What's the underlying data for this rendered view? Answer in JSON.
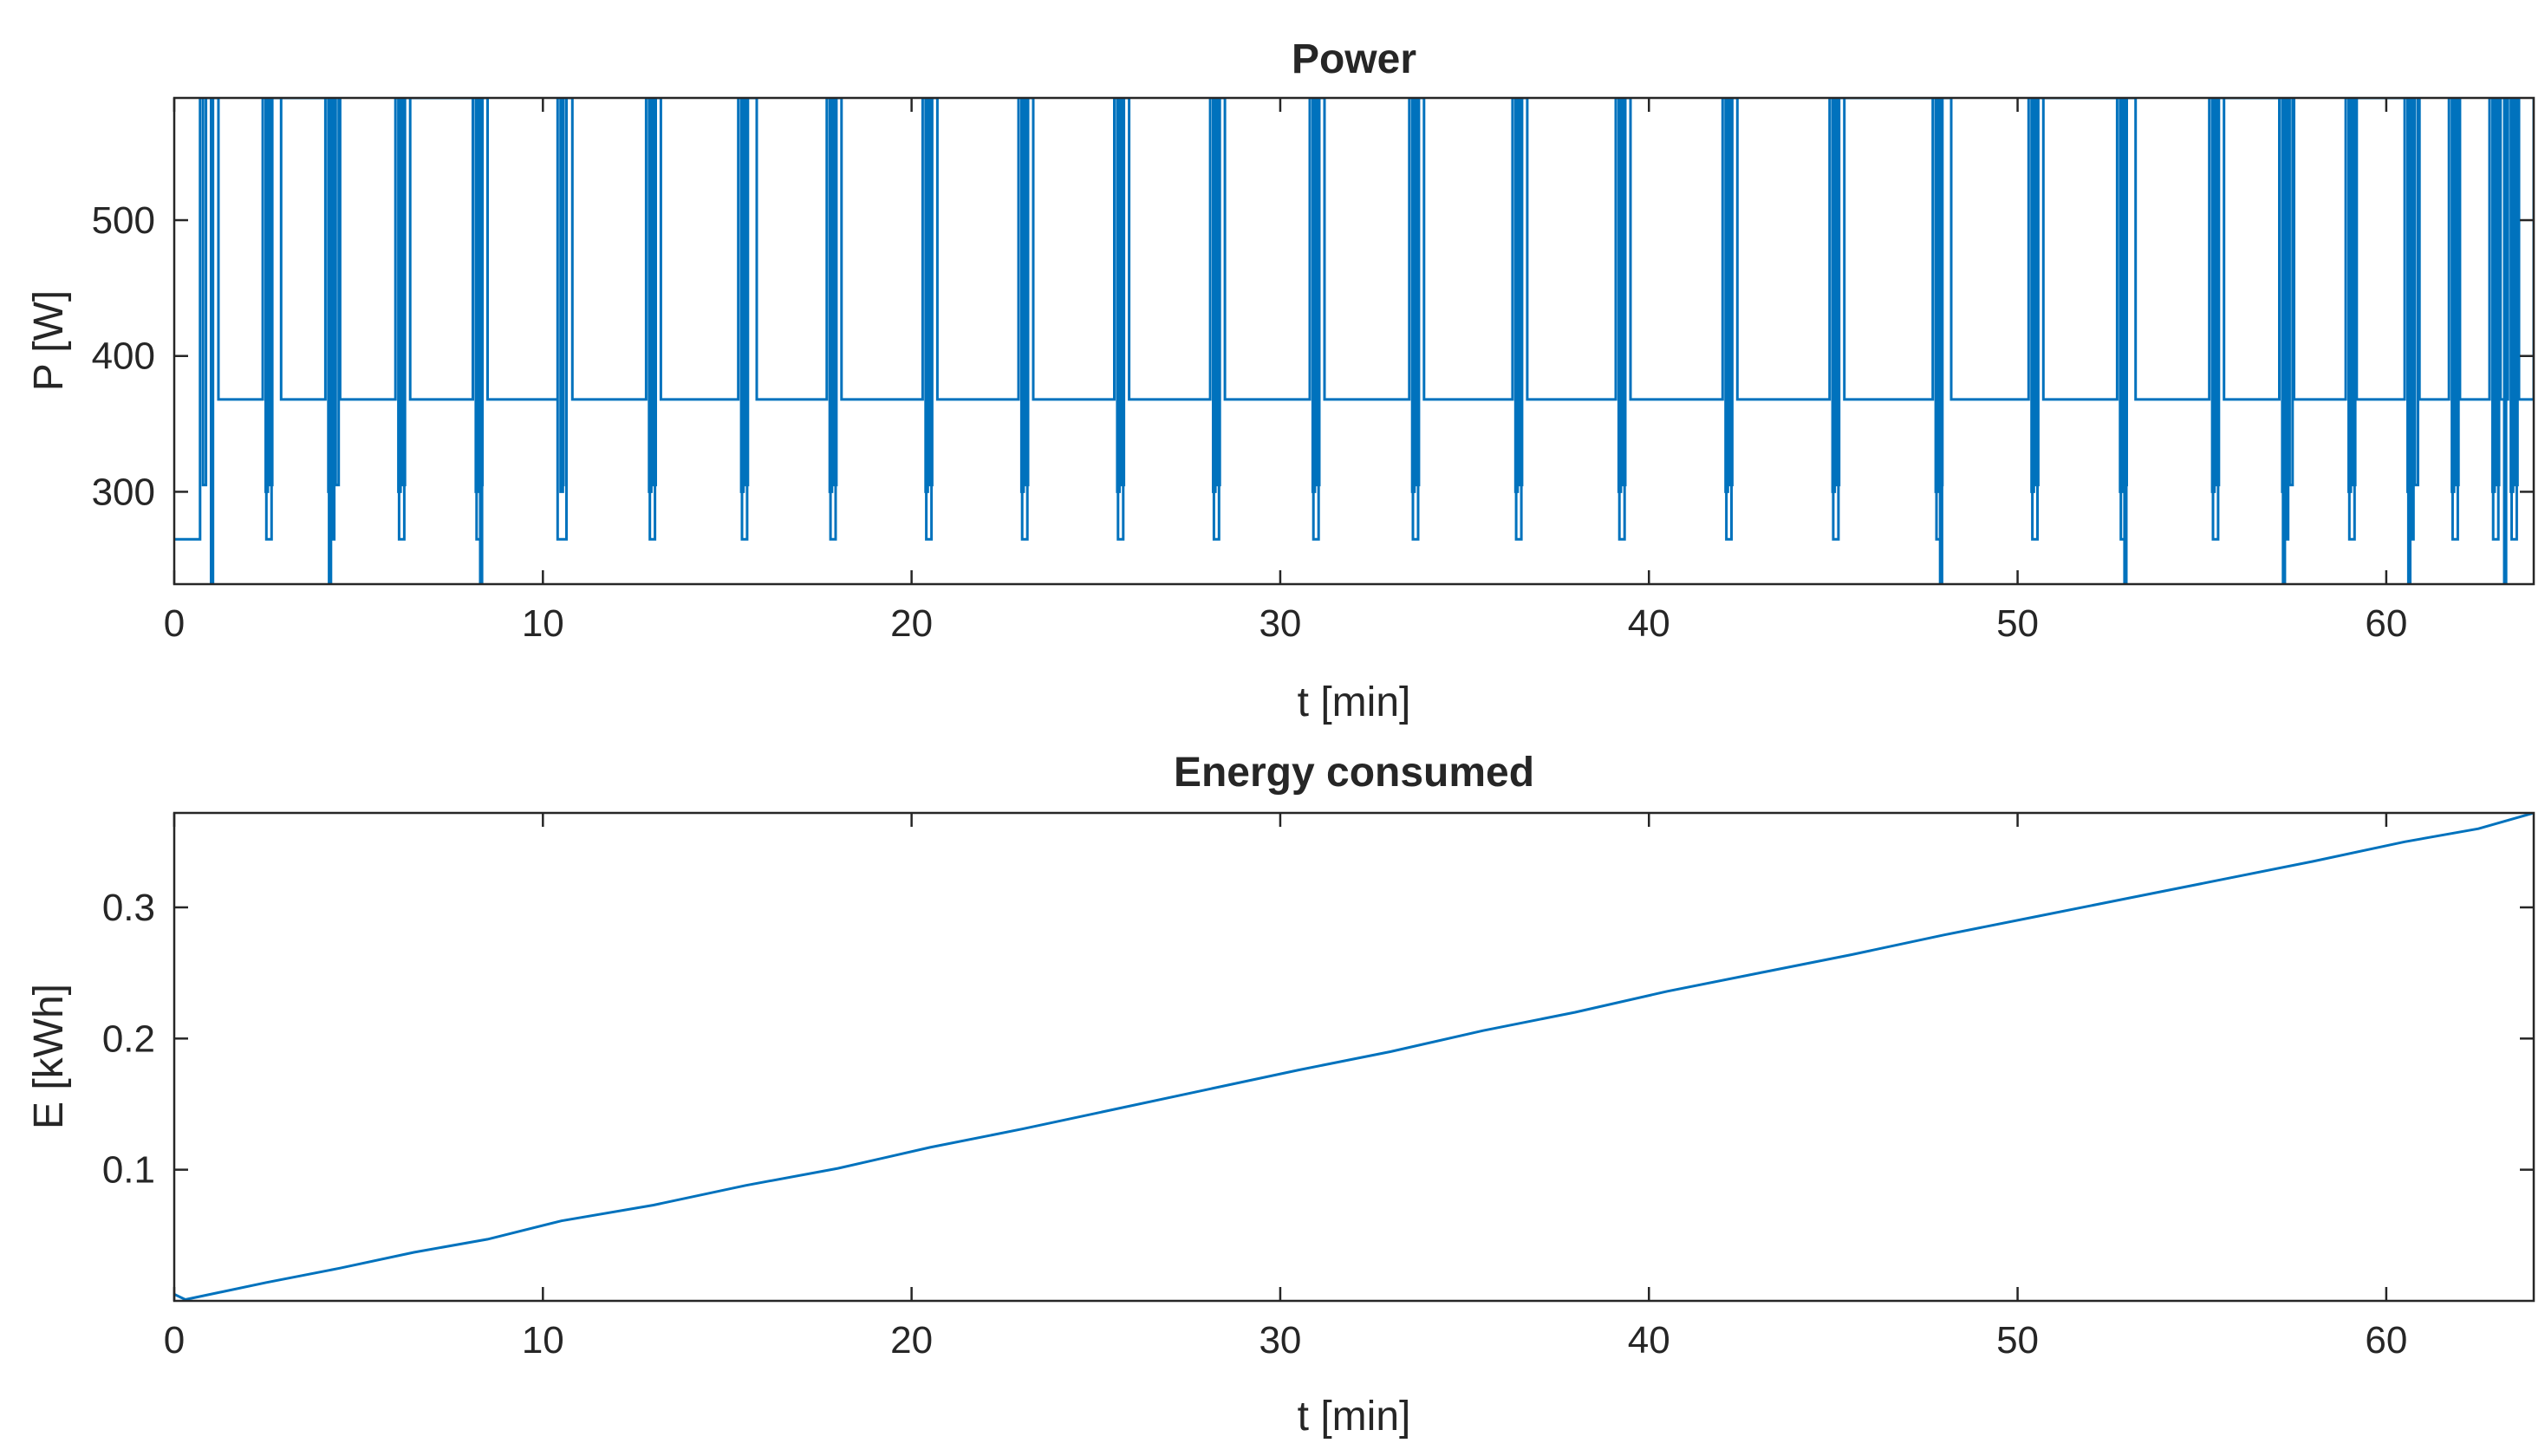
{
  "colors": {
    "line": "#0072BD",
    "axis": "#262626",
    "background": "#ffffff"
  },
  "chart_data": [
    {
      "type": "line",
      "title": "Power",
      "xlabel": "t [min]",
      "ylabel": "P [W]",
      "xlim": [
        0,
        64
      ],
      "ylim": [
        232,
        590
      ],
      "xticks": [
        0,
        10,
        20,
        30,
        40,
        50,
        60
      ],
      "xtick_labels": [
        "0",
        "10",
        "20",
        "30",
        "40",
        "50",
        "60"
      ],
      "yticks": [
        300,
        400,
        500
      ],
      "ytick_labels": [
        "300",
        "400",
        "500"
      ],
      "grid": false,
      "series": [
        {
          "name": "P",
          "low_level": 265,
          "high_level": 368,
          "peak_level": 590,
          "dip_level": 232,
          "cycles": [
            {
              "burst": 0.7,
              "high_start": 1.2,
              "high_end": 2.4,
              "dip": 1.0
            },
            {
              "burst": 2.5,
              "high_start": 2.9,
              "high_end": 4.1,
              "dip": 4.2
            },
            {
              "burst": 4.3,
              "high_start": 4.5,
              "high_end": 6.0
            },
            {
              "burst": 6.1,
              "high_start": 6.4,
              "high_end": 8.1,
              "dip": 8.3
            },
            {
              "burst": 8.2,
              "high_start": 8.5,
              "high_end": 10.4
            },
            {
              "burst": 10.4,
              "high_start": 10.8,
              "high_end": 12.8
            },
            {
              "burst": 12.9,
              "high_start": 13.2,
              "high_end": 15.3
            },
            {
              "burst": 15.4,
              "high_start": 15.8,
              "high_end": 17.7
            },
            {
              "burst": 17.8,
              "high_start": 18.1,
              "high_end": 20.3
            },
            {
              "burst": 20.4,
              "high_start": 20.7,
              "high_end": 22.9
            },
            {
              "burst": 23.0,
              "high_start": 23.3,
              "high_end": 25.5
            },
            {
              "burst": 25.6,
              "high_start": 25.9,
              "high_end": 28.1
            },
            {
              "burst": 28.2,
              "high_start": 28.5,
              "high_end": 30.8
            },
            {
              "burst": 30.9,
              "high_start": 31.2,
              "high_end": 33.5
            },
            {
              "burst": 33.6,
              "high_start": 33.9,
              "high_end": 36.3
            },
            {
              "burst": 36.4,
              "high_start": 36.7,
              "high_end": 39.1
            },
            {
              "burst": 39.2,
              "high_start": 39.5,
              "high_end": 42.0
            },
            {
              "burst": 42.1,
              "high_start": 42.4,
              "high_end": 44.9
            },
            {
              "burst": 45.0,
              "high_start": 45.3,
              "high_end": 47.7,
              "dip": 47.9
            },
            {
              "burst": 47.8,
              "high_start": 48.2,
              "high_end": 50.3
            },
            {
              "burst": 50.4,
              "high_start": 50.7,
              "high_end": 52.7,
              "dip": 52.9
            },
            {
              "burst": 52.8,
              "high_start": 53.2,
              "high_end": 55.2
            },
            {
              "burst": 55.3,
              "high_start": 55.6,
              "high_end": 57.1,
              "dip": 57.2
            },
            {
              "burst": 57.3,
              "high_start": 57.5,
              "high_end": 58.9
            },
            {
              "burst": 59.0,
              "high_start": 59.2,
              "high_end": 60.5,
              "dip": 60.6
            },
            {
              "burst": 60.7,
              "high_start": 60.9,
              "high_end": 61.7
            },
            {
              "burst": 61.8,
              "high_start": 62.0,
              "high_end": 62.8
            },
            {
              "burst": 62.9,
              "high_start": 63.1,
              "high_end": 63.3,
              "dip": 63.2
            },
            {
              "burst": 63.4,
              "high_start": 63.6,
              "high_end": 64.0
            }
          ]
        }
      ]
    },
    {
      "type": "line",
      "title": "Energy consumed",
      "xlabel": "t [min]",
      "ylabel": "E [kWh]",
      "xlim": [
        0,
        64
      ],
      "ylim": [
        0,
        0.372
      ],
      "xticks": [
        0,
        10,
        20,
        30,
        40,
        50,
        60
      ],
      "xtick_labels": [
        "0",
        "10",
        "20",
        "30",
        "40",
        "50",
        "60"
      ],
      "yticks": [
        0.1,
        0.2,
        0.3
      ],
      "ytick_labels": [
        "0.1",
        "0.2",
        "0.3"
      ],
      "grid": false,
      "series": [
        {
          "name": "E",
          "x": [
            0,
            0.3,
            2.5,
            4.5,
            6.5,
            8.5,
            10.5,
            13,
            15.5,
            18,
            20.5,
            23,
            25.5,
            28,
            30.5,
            33,
            35.5,
            38,
            40.5,
            43,
            45.5,
            48,
            50.5,
            53,
            55.5,
            58,
            60.5,
            62.5,
            64
          ],
          "y": [
            0.005,
            0.001,
            0.014,
            0.025,
            0.037,
            0.047,
            0.061,
            0.073,
            0.088,
            0.101,
            0.117,
            0.131,
            0.146,
            0.161,
            0.176,
            0.19,
            0.206,
            0.22,
            0.236,
            0.25,
            0.264,
            0.279,
            0.293,
            0.307,
            0.321,
            0.335,
            0.35,
            0.36,
            0.372
          ]
        }
      ]
    }
  ]
}
